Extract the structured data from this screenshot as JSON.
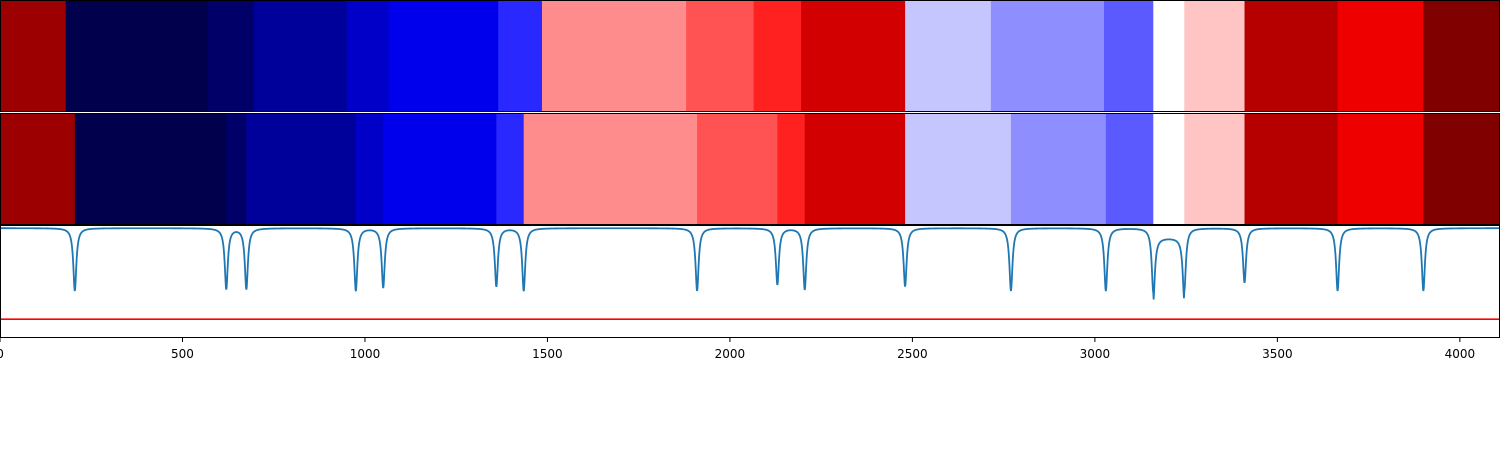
{
  "chart_data": {
    "type": "heatmap",
    "title": "",
    "xlabel": "",
    "ylabel": "",
    "xlim": [
      0,
      4110
    ],
    "x_ticks": [
      0,
      500,
      1000,
      1500,
      2000,
      2500,
      3000,
      3500,
      4000
    ],
    "x_tick_labels": [
      "0",
      "500",
      "1000",
      "1500",
      "2000",
      "2500",
      "3000",
      "3500",
      "4000"
    ],
    "colormap": "seismic",
    "grid": false,
    "rows": [
      {
        "segments": [
          {
            "start": 0,
            "end": 180,
            "color": "#9c0000"
          },
          {
            "start": 180,
            "end": 570,
            "color": "#00004c"
          },
          {
            "start": 570,
            "end": 695,
            "color": "#000068"
          },
          {
            "start": 695,
            "end": 950,
            "color": "#00009a"
          },
          {
            "start": 950,
            "end": 1065,
            "color": "#0000c8"
          },
          {
            "start": 1065,
            "end": 1365,
            "color": "#0000ec"
          },
          {
            "start": 1365,
            "end": 1485,
            "color": "#2828ff"
          },
          {
            "start": 1485,
            "end": 1880,
            "color": "#ff8c8c"
          },
          {
            "start": 1880,
            "end": 2065,
            "color": "#ff5252"
          },
          {
            "start": 2065,
            "end": 2195,
            "color": "#ff2020"
          },
          {
            "start": 2195,
            "end": 2480,
            "color": "#d20000"
          },
          {
            "start": 2480,
            "end": 2715,
            "color": "#c6c6ff"
          },
          {
            "start": 2715,
            "end": 3025,
            "color": "#8e8eff"
          },
          {
            "start": 3025,
            "end": 3160,
            "color": "#5a5aff"
          },
          {
            "start": 3160,
            "end": 3245,
            "color": "#ffffff"
          },
          {
            "start": 3245,
            "end": 3410,
            "color": "#ffc4c4"
          },
          {
            "start": 3410,
            "end": 3665,
            "color": "#b60000"
          },
          {
            "start": 3665,
            "end": 3900,
            "color": "#ee0000"
          },
          {
            "start": 3900,
            "end": 4110,
            "color": "#800000"
          }
        ]
      },
      {
        "segments": [
          {
            "start": 0,
            "end": 205,
            "color": "#9c0000"
          },
          {
            "start": 205,
            "end": 620,
            "color": "#00004c"
          },
          {
            "start": 620,
            "end": 675,
            "color": "#000068"
          },
          {
            "start": 675,
            "end": 975,
            "color": "#00009a"
          },
          {
            "start": 975,
            "end": 1050,
            "color": "#0000c8"
          },
          {
            "start": 1050,
            "end": 1360,
            "color": "#0000ec"
          },
          {
            "start": 1360,
            "end": 1435,
            "color": "#2828ff"
          },
          {
            "start": 1435,
            "end": 1910,
            "color": "#ff8c8c"
          },
          {
            "start": 1910,
            "end": 2130,
            "color": "#ff5252"
          },
          {
            "start": 2130,
            "end": 2205,
            "color": "#ff2020"
          },
          {
            "start": 2205,
            "end": 2480,
            "color": "#d20000"
          },
          {
            "start": 2480,
            "end": 2770,
            "color": "#c6c6ff"
          },
          {
            "start": 2770,
            "end": 3030,
            "color": "#8e8eff"
          },
          {
            "start": 3030,
            "end": 3160,
            "color": "#5a5aff"
          },
          {
            "start": 3160,
            "end": 3245,
            "color": "#ffffff"
          },
          {
            "start": 3245,
            "end": 3410,
            "color": "#ffc4c4"
          },
          {
            "start": 3410,
            "end": 3665,
            "color": "#b60000"
          },
          {
            "start": 3665,
            "end": 3900,
            "color": "#ee0000"
          },
          {
            "start": 3900,
            "end": 4110,
            "color": "#800000"
          }
        ]
      }
    ],
    "signal": {
      "color": "#1f77b4",
      "baseline": 0,
      "dips": [
        {
          "x": 205,
          "depth": 1.0
        },
        {
          "x": 620,
          "depth": 0.97
        },
        {
          "x": 675,
          "depth": 0.97
        },
        {
          "x": 975,
          "depth": 1.0
        },
        {
          "x": 1050,
          "depth": 0.95
        },
        {
          "x": 1360,
          "depth": 0.93
        },
        {
          "x": 1435,
          "depth": 1.0
        },
        {
          "x": 1910,
          "depth": 1.0
        },
        {
          "x": 2130,
          "depth": 0.9
        },
        {
          "x": 2205,
          "depth": 0.98
        },
        {
          "x": 2480,
          "depth": 0.93
        },
        {
          "x": 2770,
          "depth": 1.0
        },
        {
          "x": 3030,
          "depth": 1.0
        },
        {
          "x": 3160,
          "depth": 1.02
        },
        {
          "x": 3245,
          "depth": 1.0
        },
        {
          "x": 3410,
          "depth": 0.87
        },
        {
          "x": 3665,
          "depth": 1.0
        },
        {
          "x": 3900,
          "depth": 1.0
        }
      ],
      "plateau": {
        "start": 3160,
        "end": 3245,
        "level": 0.15
      }
    },
    "reference_line": {
      "color": "#ff0000",
      "level": 1.45
    }
  }
}
